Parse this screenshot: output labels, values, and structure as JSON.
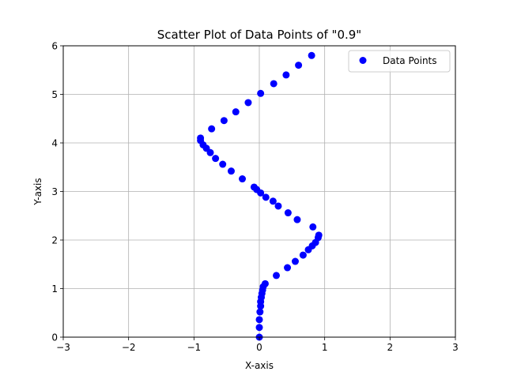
{
  "chart_data": {
    "type": "scatter",
    "title": "Scatter Plot of Data Points of \"0.9\"",
    "xlabel": "X-axis",
    "ylabel": "Y-axis",
    "xlim": [
      -3,
      3
    ],
    "ylim": [
      0,
      6
    ],
    "xticks": [
      -3,
      -2,
      -1,
      0,
      1,
      2,
      3
    ],
    "yticks": [
      0,
      1,
      2,
      3,
      4,
      5,
      6
    ],
    "xtick_labels": [
      "−3",
      "−2",
      "−1",
      "0",
      "1",
      "2",
      "3"
    ],
    "ytick_labels": [
      "0",
      "1",
      "2",
      "3",
      "4",
      "5",
      "6"
    ],
    "grid": true,
    "legend": {
      "position": "upper-right",
      "label": "Data Points"
    },
    "series": [
      {
        "name": "Data Points",
        "color": "#0000ff",
        "points": [
          [
            0.0,
            0.0
          ],
          [
            0.0,
            0.2
          ],
          [
            0.0,
            0.36
          ],
          [
            0.01,
            0.52
          ],
          [
            0.02,
            0.64
          ],
          [
            0.02,
            0.73
          ],
          [
            0.03,
            0.82
          ],
          [
            0.04,
            0.9
          ],
          [
            0.05,
            0.97
          ],
          [
            0.06,
            1.04
          ],
          [
            0.09,
            1.1
          ],
          [
            0.26,
            1.27
          ],
          [
            0.43,
            1.43
          ],
          [
            0.55,
            1.56
          ],
          [
            0.67,
            1.69
          ],
          [
            0.75,
            1.8
          ],
          [
            0.81,
            1.88
          ],
          [
            0.86,
            1.95
          ],
          [
            0.9,
            2.05
          ],
          [
            0.91,
            2.1
          ],
          [
            0.82,
            2.27
          ],
          [
            0.58,
            2.42
          ],
          [
            0.44,
            2.56
          ],
          [
            0.29,
            2.7
          ],
          [
            0.21,
            2.8
          ],
          [
            0.1,
            2.88
          ],
          [
            0.02,
            2.97
          ],
          [
            -0.04,
            3.04
          ],
          [
            -0.08,
            3.09
          ],
          [
            -0.26,
            3.26
          ],
          [
            -0.43,
            3.42
          ],
          [
            -0.56,
            3.56
          ],
          [
            -0.67,
            3.68
          ],
          [
            -0.75,
            3.8
          ],
          [
            -0.81,
            3.89
          ],
          [
            -0.86,
            3.96
          ],
          [
            -0.9,
            4.05
          ],
          [
            -0.9,
            4.1
          ],
          [
            -0.73,
            4.29
          ],
          [
            -0.54,
            4.46
          ],
          [
            -0.36,
            4.64
          ],
          [
            -0.17,
            4.83
          ],
          [
            0.02,
            5.02
          ],
          [
            0.22,
            5.22
          ],
          [
            0.41,
            5.4
          ],
          [
            0.6,
            5.6
          ],
          [
            0.8,
            5.8
          ]
        ]
      }
    ]
  }
}
